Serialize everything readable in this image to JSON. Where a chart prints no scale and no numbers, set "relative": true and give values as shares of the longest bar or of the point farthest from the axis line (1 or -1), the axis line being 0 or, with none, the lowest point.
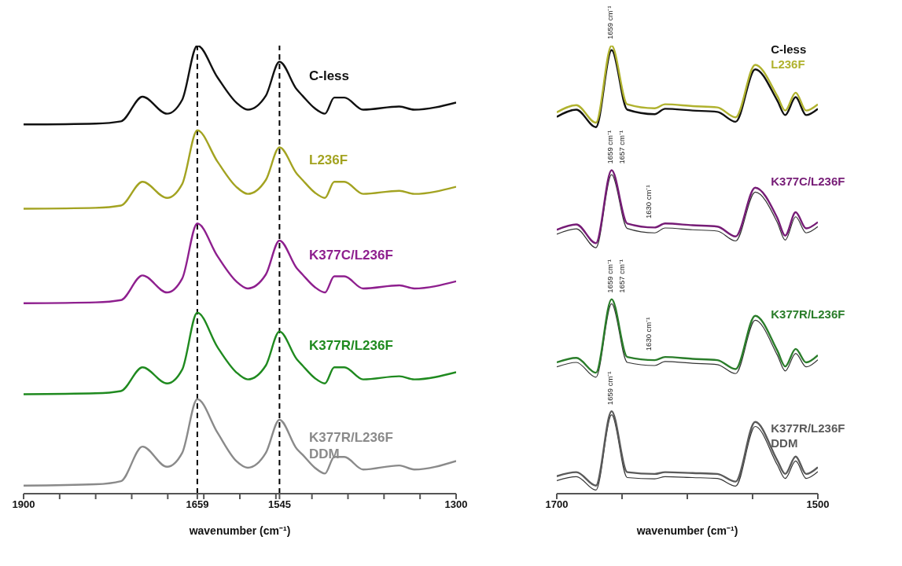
{
  "chart_data": [
    {
      "type": "line",
      "relative": true,
      "xlabel": "wavenumber (cm⁻¹)",
      "xlim": [
        1900,
        1300
      ],
      "xticks": [
        1900,
        {
          "value": 1850,
          "label": null
        },
        {
          "value": 1800,
          "label": null
        },
        {
          "value": 1750,
          "label": null
        },
        {
          "value": 1700,
          "label": null
        },
        1659,
        {
          "value": 1650,
          "label": null
        },
        {
          "value": 1600,
          "label": null
        },
        {
          "value": 1550,
          "label": null
        },
        1545,
        {
          "value": 1500,
          "label": null
        },
        {
          "value": 1450,
          "label": null
        },
        {
          "value": 1400,
          "label": null
        },
        {
          "value": 1350,
          "label": null
        },
        1300
      ],
      "legend": false,
      "grid": false,
      "ref_lines": [
        {
          "axis": "x",
          "value": 1659,
          "line_style": "dashed",
          "color": "#000000"
        },
        {
          "axis": "x",
          "value": 1545,
          "line_style": "dashed",
          "color": "#000000"
        }
      ],
      "x": [
        1900,
        1800,
        1765,
        1735,
        1701,
        1680,
        1659,
        1631,
        1605,
        1589,
        1564,
        1545,
        1521,
        1513,
        1496,
        1482,
        1469,
        1455,
        1429,
        1379,
        1358,
        1300
      ],
      "series": [
        {
          "name": "C-less",
          "color": "#111111",
          "values": [
            0.824,
            0.826,
            0.831,
            0.886,
            0.848,
            0.879,
            1.0,
            0.929,
            0.873,
            0.857,
            0.888,
            0.964,
            0.902,
            0.888,
            0.86,
            0.848,
            0.884,
            0.884,
            0.857,
            0.864,
            0.857,
            0.873
          ]
        },
        {
          "name": "L236F",
          "color": "#a3a321",
          "values": [
            0.636,
            0.638,
            0.643,
            0.696,
            0.66,
            0.691,
            0.811,
            0.741,
            0.685,
            0.669,
            0.7,
            0.773,
            0.714,
            0.7,
            0.672,
            0.66,
            0.696,
            0.696,
            0.669,
            0.676,
            0.669,
            0.685
          ]
        },
        {
          "name": "K377C/L236F",
          "color": "#8e1f8e",
          "values": [
            0.425,
            0.427,
            0.432,
            0.487,
            0.449,
            0.48,
            0.603,
            0.53,
            0.474,
            0.458,
            0.489,
            0.565,
            0.503,
            0.489,
            0.461,
            0.449,
            0.485,
            0.485,
            0.458,
            0.465,
            0.458,
            0.474
          ]
        },
        {
          "name": "K377R/L236F",
          "color": "#1f8a1f",
          "values": [
            0.222,
            0.224,
            0.229,
            0.282,
            0.246,
            0.277,
            0.404,
            0.327,
            0.271,
            0.255,
            0.286,
            0.362,
            0.3,
            0.286,
            0.258,
            0.246,
            0.282,
            0.282,
            0.255,
            0.262,
            0.255,
            0.271
          ]
        },
        {
          "name": "K377R/L236F DDM",
          "color": "#8a8a8a",
          "values": [
            0.018,
            0.021,
            0.028,
            0.105,
            0.06,
            0.091,
            0.211,
            0.136,
            0.073,
            0.058,
            0.091,
            0.165,
            0.1,
            0.087,
            0.058,
            0.045,
            0.082,
            0.082,
            0.054,
            0.063,
            0.054,
            0.073
          ]
        }
      ]
    },
    {
      "type": "line",
      "relative": true,
      "xlabel": "wavenumber (cm⁻¹)",
      "xlim": [
        1700,
        1500
      ],
      "xticks": [
        1700,
        {
          "value": 1650,
          "label": null
        },
        {
          "value": 1600,
          "label": null
        },
        {
          "value": 1550,
          "label": null
        },
        1500
      ],
      "legend": false,
      "grid": false,
      "annotations": [
        {
          "text": "1659 cm⁻¹",
          "x": 1659,
          "y": 1.0
        },
        {
          "text": "1659 cm⁻¹",
          "x": 1659,
          "y": 0.722
        },
        {
          "text": "1657 cm⁻¹",
          "x": 1657,
          "y": 0.722
        },
        {
          "text": "1630 cm⁻¹",
          "x": 1630,
          "y": 0.6
        },
        {
          "text": "1659 cm⁻¹",
          "x": 1659,
          "y": 0.434
        },
        {
          "text": "1657 cm⁻¹",
          "x": 1657,
          "y": 0.434
        },
        {
          "text": "1630 cm⁻¹",
          "x": 1630,
          "y": 0.305
        },
        {
          "text": "1659 cm⁻¹",
          "x": 1659,
          "y": 0.184
        }
      ],
      "x": [
        1700,
        1685,
        1670,
        1658,
        1646,
        1625,
        1617,
        1596,
        1577,
        1563,
        1548,
        1531,
        1525,
        1517,
        1509,
        1500
      ],
      "series": [
        {
          "name": "C-less",
          "color": "#111111",
          "values": [
            0.841,
            0.857,
            0.818,
            0.99,
            0.857,
            0.847,
            0.859,
            0.855,
            0.852,
            0.83,
            0.947,
            0.877,
            0.845,
            0.885,
            0.845,
            0.859
          ]
        },
        {
          "name": "L236F",
          "color": "#b0b22e",
          "values": [
            0.851,
            0.867,
            0.828,
            1.0,
            0.869,
            0.86,
            0.869,
            0.865,
            0.862,
            0.84,
            0.957,
            0.887,
            0.855,
            0.895,
            0.855,
            0.869
          ]
        },
        {
          "color": "#333333",
          "values": [
            0.579,
            0.591,
            0.549,
            0.712,
            0.592,
            0.582,
            0.593,
            0.589,
            0.586,
            0.564,
            0.673,
            0.605,
            0.566,
            0.618,
            0.582,
            0.596
          ]
        },
        {
          "name": "K377C/L236F",
          "color": "#761c76",
          "values": [
            0.589,
            0.601,
            0.559,
            0.722,
            0.603,
            0.594,
            0.603,
            0.599,
            0.596,
            0.574,
            0.683,
            0.615,
            0.576,
            0.628,
            0.592,
            0.606
          ]
        },
        {
          "color": "#333333",
          "values": [
            0.283,
            0.293,
            0.26,
            0.424,
            0.293,
            0.286,
            0.295,
            0.291,
            0.288,
            0.268,
            0.387,
            0.309,
            0.274,
            0.313,
            0.283,
            0.299
          ]
        },
        {
          "name": "K377R/L236F",
          "color": "#2a7d2a",
          "values": [
            0.293,
            0.303,
            0.27,
            0.434,
            0.305,
            0.298,
            0.305,
            0.301,
            0.298,
            0.278,
            0.397,
            0.319,
            0.284,
            0.323,
            0.293,
            0.309
          ]
        },
        {
          "color": "#333333",
          "values": [
            0.029,
            0.038,
            0.008,
            0.176,
            0.036,
            0.033,
            0.038,
            0.036,
            0.034,
            0.017,
            0.15,
            0.064,
            0.034,
            0.073,
            0.034,
            0.049
          ]
        },
        {
          "name": "K377R/L236F DDM",
          "color": "#5a5a5a",
          "values": [
            0.039,
            0.048,
            0.018,
            0.184,
            0.048,
            0.044,
            0.048,
            0.046,
            0.044,
            0.027,
            0.16,
            0.074,
            0.044,
            0.083,
            0.044,
            0.059
          ]
        }
      ]
    }
  ]
}
